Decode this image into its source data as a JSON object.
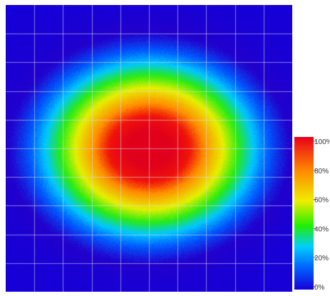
{
  "chart_data": {
    "type": "heatmap",
    "title": "",
    "xlabel": "",
    "ylabel": "",
    "grid": true,
    "grid_divisions": 10,
    "distribution": {
      "shape": "elliptical",
      "peak_percent": 100,
      "peak_x_fraction": 0.5,
      "peak_y_fraction": 0.5
    },
    "colorbar": {
      "position": "bottom-right",
      "min": 0,
      "max": 100,
      "ticks": [
        "0%",
        "20%",
        "40%",
        "60%",
        "80%",
        "100%"
      ]
    },
    "colors": {
      "low": "#2200cc",
      "blue": "#0044ff",
      "cyan": "#00ccff",
      "green": "#22ee00",
      "yellow": "#eeee00",
      "orange": "#ff9900",
      "high": "#e8001c"
    }
  }
}
